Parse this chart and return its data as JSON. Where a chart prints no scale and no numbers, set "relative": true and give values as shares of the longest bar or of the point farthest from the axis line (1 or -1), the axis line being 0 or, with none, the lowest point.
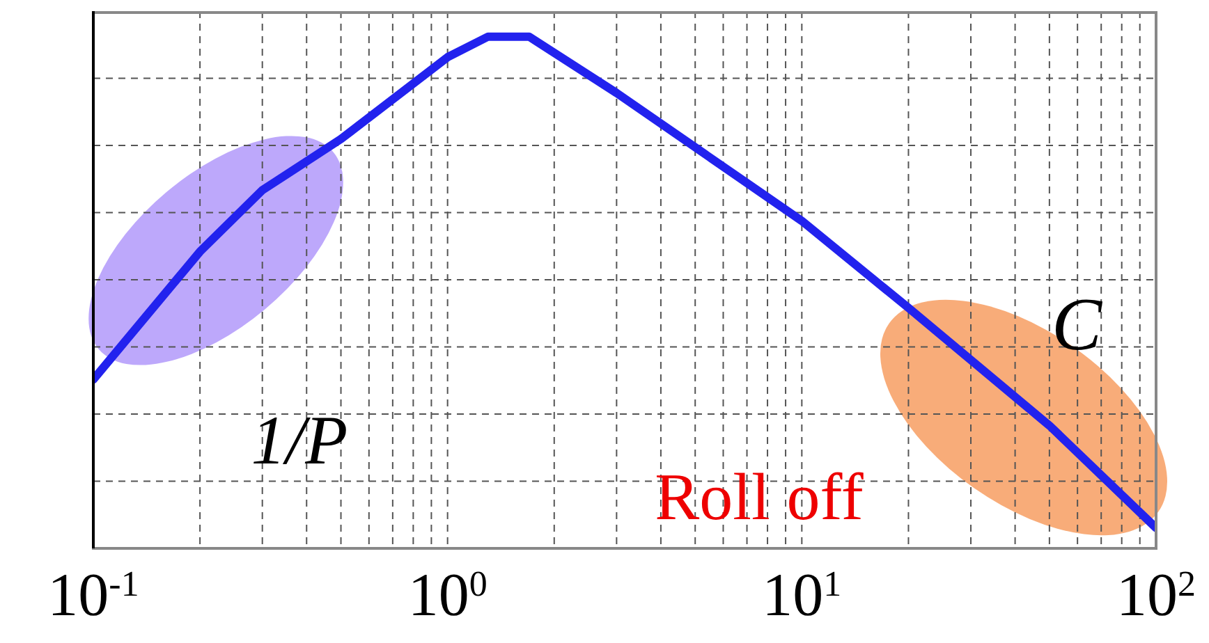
{
  "chart_data": {
    "type": "line",
    "relative": true,
    "x": [
      0.1,
      0.2,
      0.3,
      0.5,
      1,
      1.3,
      1.7,
      3,
      10,
      20,
      50,
      100
    ],
    "series": [
      {
        "color": "#2222ee",
        "values": [
          0.33,
          0.58,
          0.7,
          0.8,
          0.96,
          1,
          1,
          0.89,
          0.64,
          0.47,
          0.24,
          0.04
        ]
      }
    ],
    "xlim": [
      0.1,
      100
    ],
    "xticks": [
      {
        "value": 0.1,
        "label": "10$^{-1}$"
      },
      {
        "value": 1,
        "label": "10$^{0}$"
      },
      {
        "value": 10,
        "label": "10$^{1}$"
      },
      {
        "value": 100,
        "label": "10$^{2}$"
      }
    ],
    "log": "x",
    "grid": true,
    "marker": "none",
    "line_style": "solid",
    "annotations": [
      "1/P",
      "C",
      "Roll off"
    ]
  }
}
